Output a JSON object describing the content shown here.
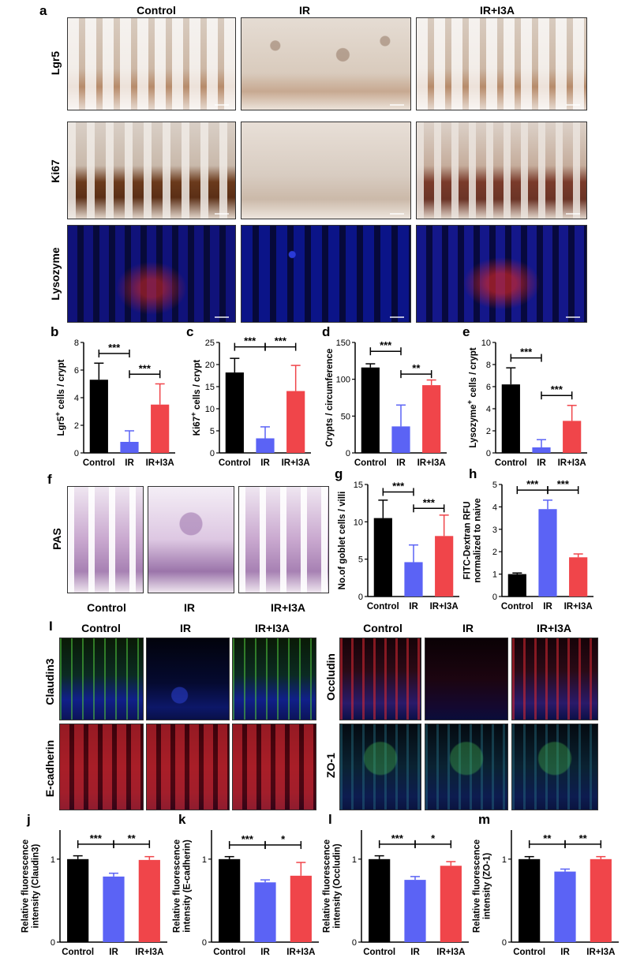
{
  "panels": {
    "a": {
      "label": "a",
      "columns": [
        "Control",
        "IR",
        "IR+I3A"
      ],
      "rows": [
        "Lgr5",
        "Ki67",
        "Lysozyme"
      ]
    },
    "f": {
      "label": "f",
      "row": "PAS",
      "columns": [
        "Control",
        "IR",
        "IR+I3A"
      ]
    },
    "i": {
      "label": "I",
      "left_columns": [
        "Control",
        "IR",
        "IR+I3A"
      ],
      "right_columns": [
        "Control",
        "IR",
        "IR+I3A"
      ],
      "left_rows": [
        "Claudin3",
        "E-cadherin"
      ],
      "right_rows": [
        "Occludin",
        "ZO-1"
      ]
    }
  },
  "colors": {
    "control": "#000000",
    "ir": "#5b63f5",
    "ir_i3a": "#f0454a"
  },
  "chart_data": [
    {
      "id": "b",
      "panel_label": "b",
      "type": "bar",
      "categories": [
        "Control",
        "IR",
        "IR+I3A"
      ],
      "values": [
        5.3,
        0.8,
        3.5
      ],
      "errors": [
        1.2,
        0.8,
        1.5
      ],
      "ylabel_html": "Lgr5<sup>+</sup> cells / crypt",
      "ylim": [
        0,
        8
      ],
      "yticks": [
        0,
        2,
        4,
        6,
        8
      ],
      "tick_labels": [
        "0",
        "2",
        "4",
        "6",
        "8"
      ],
      "sig": [
        {
          "from": 0,
          "to": 1,
          "y": 7.2,
          "label": "***"
        },
        {
          "from": 1,
          "to": 2,
          "y": 5.7,
          "label": "***"
        }
      ]
    },
    {
      "id": "c",
      "panel_label": "c",
      "type": "bar",
      "categories": [
        "Control",
        "IR",
        "IR+I3A"
      ],
      "values": [
        18.2,
        3.3,
        14.0
      ],
      "errors": [
        3.2,
        2.6,
        5.8
      ],
      "ylabel_html": "Ki67<sup>+</sup> cells / crypt",
      "ylim": [
        0,
        25
      ],
      "yticks": [
        0,
        5,
        10,
        15,
        20,
        25
      ],
      "tick_labels": [
        "0",
        "5",
        "10",
        "15",
        "20",
        "25"
      ],
      "sig": [
        {
          "from": 0,
          "to": 1,
          "y": 24,
          "label": "***"
        },
        {
          "from": 1,
          "to": 2,
          "y": 24,
          "label": "***"
        }
      ]
    },
    {
      "id": "d",
      "panel_label": "d",
      "type": "bar",
      "categories": [
        "Control",
        "IR",
        "IR+I3A"
      ],
      "values": [
        116,
        36,
        92
      ],
      "errors": [
        5,
        29,
        7
      ],
      "ylabel_html": "Crypts / circumference",
      "ylim": [
        0,
        150
      ],
      "yticks": [
        0,
        50,
        100,
        150
      ],
      "tick_labels": [
        "0",
        "50",
        "100",
        "150"
      ],
      "sig": [
        {
          "from": 0,
          "to": 1,
          "y": 138,
          "label": "***"
        },
        {
          "from": 1,
          "to": 2,
          "y": 107,
          "label": "**"
        }
      ]
    },
    {
      "id": "e",
      "panel_label": "e",
      "type": "bar",
      "categories": [
        "Control",
        "IR",
        "IR+I3A"
      ],
      "values": [
        6.2,
        0.5,
        2.9
      ],
      "errors": [
        1.5,
        0.7,
        1.4
      ],
      "ylabel_html": "Lysozyme<sup>+</sup> cells / crypt",
      "ylim": [
        0,
        10
      ],
      "yticks": [
        0,
        2,
        4,
        6,
        8,
        10
      ],
      "tick_labels": [
        "0",
        "2",
        "4",
        "6",
        "8",
        "10"
      ],
      "sig": [
        {
          "from": 0,
          "to": 1,
          "y": 8.6,
          "label": "***"
        },
        {
          "from": 1,
          "to": 2,
          "y": 5.2,
          "label": "***"
        }
      ]
    },
    {
      "id": "g",
      "panel_label": "g",
      "type": "bar",
      "categories": [
        "Control",
        "IR",
        "IR+I3A"
      ],
      "values": [
        10.5,
        4.6,
        8.1
      ],
      "errors": [
        2.4,
        2.3,
        2.8
      ],
      "ylabel_html": "No.of goblet cells / villi",
      "ylim": [
        0,
        15
      ],
      "yticks": [
        0,
        5,
        10,
        15
      ],
      "tick_labels": [
        "0",
        "5",
        "10",
        "15"
      ],
      "sig": [
        {
          "from": 0,
          "to": 1,
          "y": 14,
          "label": "***"
        },
        {
          "from": 1,
          "to": 2,
          "y": 11.8,
          "label": "***"
        }
      ]
    },
    {
      "id": "h",
      "panel_label": "h",
      "type": "bar",
      "categories": [
        "Control",
        "IR",
        "IR+I3A"
      ],
      "values": [
        1.0,
        3.9,
        1.75
      ],
      "errors": [
        0.05,
        0.4,
        0.15
      ],
      "ylabel_lines": [
        "FITC-Dextran RFU",
        "normalized to naive"
      ],
      "ylim": [
        0,
        5
      ],
      "yticks": [
        0,
        1,
        2,
        3,
        4,
        5
      ],
      "tick_labels": [
        "0",
        "1",
        "2",
        "3",
        "4",
        "5"
      ],
      "sig": [
        {
          "from": 0,
          "to": 1,
          "y": 4.75,
          "label": "***"
        },
        {
          "from": 1,
          "to": 2,
          "y": 4.75,
          "label": "***"
        }
      ]
    },
    {
      "id": "j",
      "panel_label": "j",
      "type": "bar",
      "categories": [
        "Control",
        "IR",
        "IR+I3A"
      ],
      "values": [
        1.0,
        0.79,
        0.99
      ],
      "errors": [
        0.04,
        0.04,
        0.04
      ],
      "ylabel_lines": [
        "Relative fluorescence",
        "intensity (Claudin3)"
      ],
      "ylim": [
        0,
        1.35
      ],
      "yticks": [
        0,
        1
      ],
      "tick_labels": [
        "0",
        "1"
      ],
      "sig": [
        {
          "from": 0,
          "to": 1,
          "y": 1.18,
          "label": "***"
        },
        {
          "from": 1,
          "to": 2,
          "y": 1.18,
          "label": "**"
        }
      ]
    },
    {
      "id": "k",
      "panel_label": "k",
      "type": "bar",
      "categories": [
        "Control",
        "IR",
        "IR+I3A"
      ],
      "values": [
        1.0,
        0.72,
        0.8
      ],
      "errors": [
        0.03,
        0.03,
        0.16
      ],
      "ylabel_lines": [
        "Relative fluorescence",
        "intensity (E-cadherin)"
      ],
      "ylim": [
        0,
        1.35
      ],
      "yticks": [
        0,
        1
      ],
      "tick_labels": [
        "0",
        "1"
      ],
      "sig": [
        {
          "from": 0,
          "to": 1,
          "y": 1.17,
          "label": "***"
        },
        {
          "from": 1,
          "to": 2,
          "y": 1.17,
          "label": "*"
        }
      ]
    },
    {
      "id": "l",
      "panel_label": "l",
      "type": "bar",
      "categories": [
        "Control",
        "IR",
        "IR+I3A"
      ],
      "values": [
        1.0,
        0.75,
        0.92
      ],
      "errors": [
        0.04,
        0.04,
        0.05
      ],
      "ylabel_lines": [
        "Relative fluorescence",
        "intensity (Occludin)"
      ],
      "ylim": [
        0,
        1.35
      ],
      "yticks": [
        0,
        1
      ],
      "tick_labels": [
        "0",
        "1"
      ],
      "sig": [
        {
          "from": 0,
          "to": 1,
          "y": 1.18,
          "label": "***"
        },
        {
          "from": 1,
          "to": 2,
          "y": 1.18,
          "label": "*"
        }
      ]
    },
    {
      "id": "m",
      "panel_label": "m",
      "type": "bar",
      "categories": [
        "Control",
        "IR",
        "IR+I3A"
      ],
      "values": [
        1.0,
        0.85,
        1.0
      ],
      "errors": [
        0.03,
        0.03,
        0.03
      ],
      "ylabel_lines": [
        "Relative fluorescence",
        "intensity (ZO-1)"
      ],
      "ylim": [
        0,
        1.35
      ],
      "yticks": [
        0,
        1
      ],
      "tick_labels": [
        "0",
        "1"
      ],
      "sig": [
        {
          "from": 0,
          "to": 1,
          "y": 1.18,
          "label": "**"
        },
        {
          "from": 1,
          "to": 2,
          "y": 1.18,
          "label": "**"
        }
      ]
    }
  ]
}
